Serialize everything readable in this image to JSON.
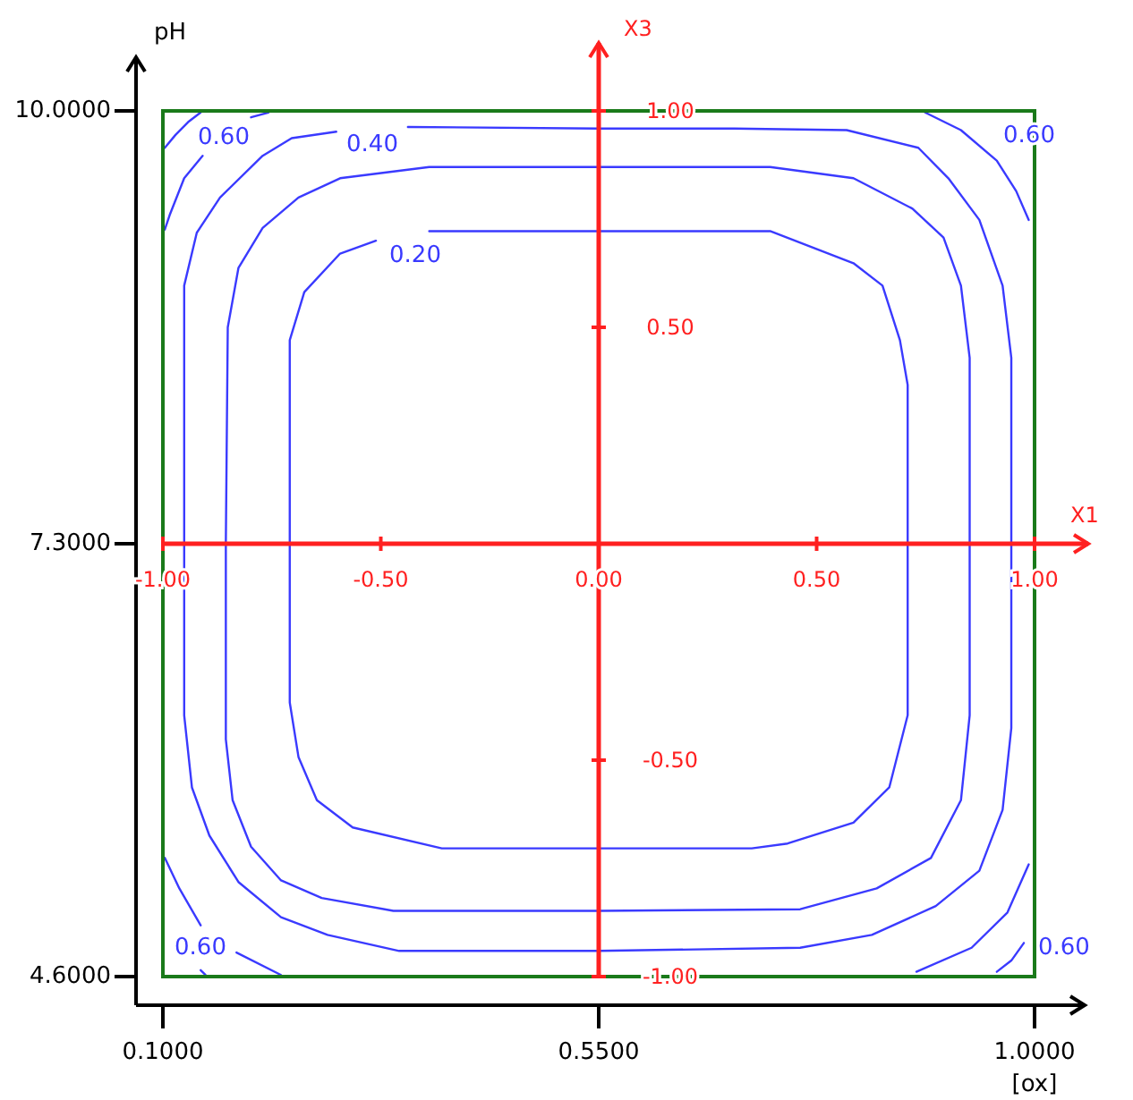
{
  "chart_data": {
    "type": "line",
    "xlabel": "[ox]",
    "ylabel": "pH",
    "x2label": "X1",
    "y2label": "X3",
    "xlim": [
      0.1,
      1.0
    ],
    "xticks": [
      {
        "value": 0.1,
        "label": "0.1000"
      },
      {
        "value": 0.55,
        "label": "0.5500"
      },
      {
        "value": 1.0,
        "label": "1.0000"
      }
    ],
    "ylim": [
      4.6,
      10.0
    ],
    "yticks": [
      {
        "value": 4.6,
        "label": "4.6000"
      },
      {
        "value": 7.3,
        "label": "7.3000"
      },
      {
        "value": 10.0,
        "label": "10.0000"
      }
    ],
    "x2lim": [
      -1,
      1
    ],
    "x2ticks": [
      {
        "value": -1,
        "label": "-1.00"
      },
      {
        "value": -0.5,
        "label": "-0.50"
      },
      {
        "value": 0,
        "label": "0.00"
      },
      {
        "value": 0.5,
        "label": "0.50"
      },
      {
        "value": 1,
        "label": "1.00"
      }
    ],
    "y2lim": [
      -1,
      1
    ],
    "y2ticks": [
      {
        "value": -1,
        "label": "-1.00"
      },
      {
        "value": -0.5,
        "label": "-0.50"
      },
      {
        "value": 0,
        "label": null
      },
      {
        "value": 0.5,
        "label": "0.50"
      },
      {
        "value": 1,
        "label": "1.00"
      }
    ],
    "series": [
      {
        "color": "#3a3aff",
        "x": [
          0.353,
          0.55,
          0.69,
          0.806,
          0.88,
          0.911,
          0.943,
          0.967,
          0.976,
          0.976,
          0.976,
          0.967,
          0.943,
          0.898,
          0.832,
          0.758,
          0.55,
          0.344,
          0.27,
          0.222,
          0.178,
          0.148,
          0.13,
          0.122,
          0.122,
          0.122,
          0.135,
          0.159,
          0.203,
          0.233,
          0.279
        ],
        "values": [
          9.9,
          9.89,
          9.89,
          9.88,
          9.77,
          9.58,
          9.32,
          8.91,
          8.46,
          7.3,
          6.15,
          5.64,
          5.26,
          5.04,
          4.86,
          4.78,
          4.76,
          4.76,
          4.86,
          4.97,
          5.19,
          5.48,
          5.78,
          6.23,
          7.3,
          8.91,
          9.24,
          9.46,
          9.72,
          9.83,
          9.87
        ]
      },
      {
        "color": "#3a3aff",
        "x": [
          0.375,
          0.55,
          0.727,
          0.813,
          0.843,
          0.861,
          0.869,
          0.869,
          0.869,
          0.85,
          0.813,
          0.745,
          0.708,
          0.55,
          0.388,
          0.296,
          0.259,
          0.24,
          0.231,
          0.231,
          0.231,
          0.246,
          0.283,
          0.32
        ],
        "values": [
          9.25,
          9.25,
          9.25,
          9.05,
          8.91,
          8.57,
          8.29,
          7.3,
          6.23,
          5.78,
          5.56,
          5.43,
          5.4,
          5.4,
          5.4,
          5.53,
          5.7,
          5.97,
          6.31,
          7.3,
          8.57,
          8.87,
          9.11,
          9.19
        ]
      },
      {
        "color": "#3a3aff",
        "x": [
          0.102,
          0.107,
          0.122,
          0.141
        ],
        "values": [
          9.26,
          9.35,
          9.58,
          9.72
        ]
      },
      {
        "color": "#3a3aff",
        "x": [
          0.191,
          0.209
        ],
        "values": [
          9.96,
          9.99
        ]
      },
      {
        "color": "#3a3aff",
        "x": [
          0.887,
          0.924,
          0.961,
          0.981,
          0.994
        ],
        "values": [
          9.99,
          9.88,
          9.69,
          9.5,
          9.32
        ]
      },
      {
        "color": "#3a3aff",
        "x": [
          0.878,
          0.935,
          0.972,
          0.994
        ],
        "values": [
          4.63,
          4.78,
          5.0,
          5.3
        ]
      },
      {
        "color": "#3a3aff",
        "x": [
          0.102,
          0.117,
          0.139
        ],
        "values": [
          5.34,
          5.15,
          4.92
        ]
      },
      {
        "color": "#3a3aff",
        "x": [
          0.176,
          0.222
        ],
        "values": [
          4.75,
          4.61
        ]
      }
    ],
    "annotations": [
      "0.60",
      "0.40",
      "0.20",
      "0.60",
      "0.60",
      "0.60"
    ]
  }
}
